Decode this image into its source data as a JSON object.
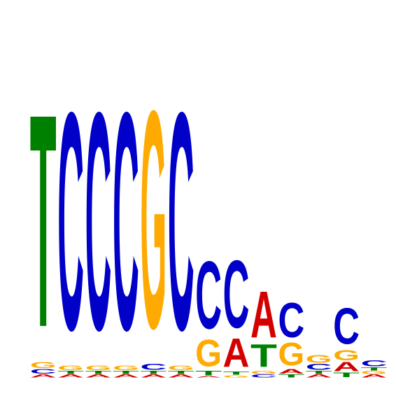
{
  "chart_data": {
    "type": "sequence-logo",
    "alphabet": [
      "A",
      "C",
      "G",
      "T"
    ],
    "colors": {
      "A": "#d40000",
      "C": "#0000c8",
      "G": "#ffaa00",
      "T": "#008000"
    },
    "ylim": [
      0,
      2
    ],
    "positions": [
      {
        "A": 0.02,
        "C": 0.03,
        "G": 0.04,
        "T": 1.42
      },
      {
        "A": 0.02,
        "C": 1.45,
        "G": 0.03,
        "T": 0.02
      },
      {
        "A": 0.02,
        "C": 1.45,
        "G": 0.03,
        "T": 0.02
      },
      {
        "A": 0.02,
        "C": 1.45,
        "G": 0.03,
        "T": 0.02
      },
      {
        "A": 0.02,
        "C": 0.04,
        "G": 1.45,
        "T": 0.02
      },
      {
        "A": 0.02,
        "C": 1.45,
        "G": 0.03,
        "T": 0.02
      },
      {
        "A": 0.01,
        "C": 0.45,
        "G": 0.18,
        "T": 0.03
      },
      {
        "A": 0.19,
        "C": 0.45,
        "G": 0.015,
        "T": 0.02
      },
      {
        "A": 0.31,
        "C": 0.02,
        "G": 0.02,
        "T": 0.15
      },
      {
        "A": 0.03,
        "C": 0.23,
        "G": 0.15,
        "T": 0.02
      },
      {
        "A": 0.02,
        "C": 0.04,
        "G": 0.05,
        "T": 0.02
      },
      {
        "A": 0.06,
        "C": 0.24,
        "G": 0.07,
        "T": 0.03
      },
      {
        "A": 0.02,
        "C": 0.04,
        "G": 0.02,
        "T": 0.02
      }
    ]
  }
}
